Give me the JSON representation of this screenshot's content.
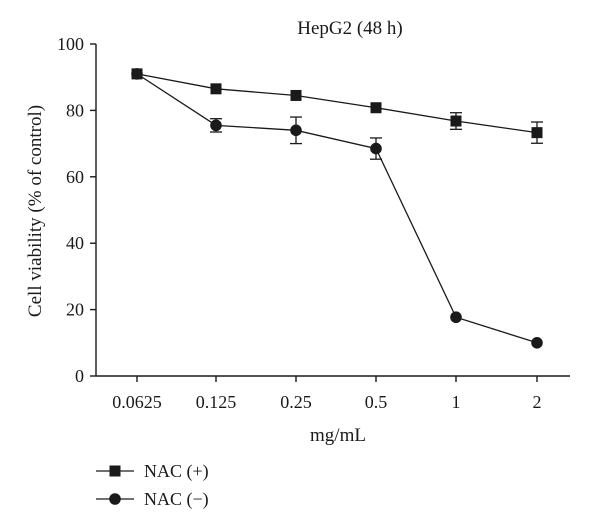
{
  "chart_data": {
    "type": "line",
    "title": "HepG2 (48 h)",
    "xlabel": "mg/mL",
    "ylabel": "Cell viability (% of control)",
    "categories": [
      "0.0625",
      "0.125",
      "0.25",
      "0.5",
      "1",
      "2"
    ],
    "ylim": [
      0,
      100
    ],
    "yticks": [
      "0",
      "20",
      "40",
      "60",
      "80",
      "100"
    ],
    "grid": false,
    "legend_position": "bottom-left",
    "series": [
      {
        "name": "NAC (+)",
        "marker": "square",
        "color": "#1a1a1a",
        "values": [
          91,
          86.5,
          84.5,
          80.8,
          76.8,
          73.3
        ],
        "errors": [
          0,
          0,
          0,
          0,
          2.5,
          3.2
        ]
      },
      {
        "name": "NAC (−)",
        "marker": "circle",
        "color": "#1a1a1a",
        "values": [
          91,
          75.5,
          74,
          68.5,
          17.7,
          10
        ],
        "errors": [
          0,
          2.0,
          4.0,
          3.2,
          0,
          0
        ]
      }
    ]
  }
}
